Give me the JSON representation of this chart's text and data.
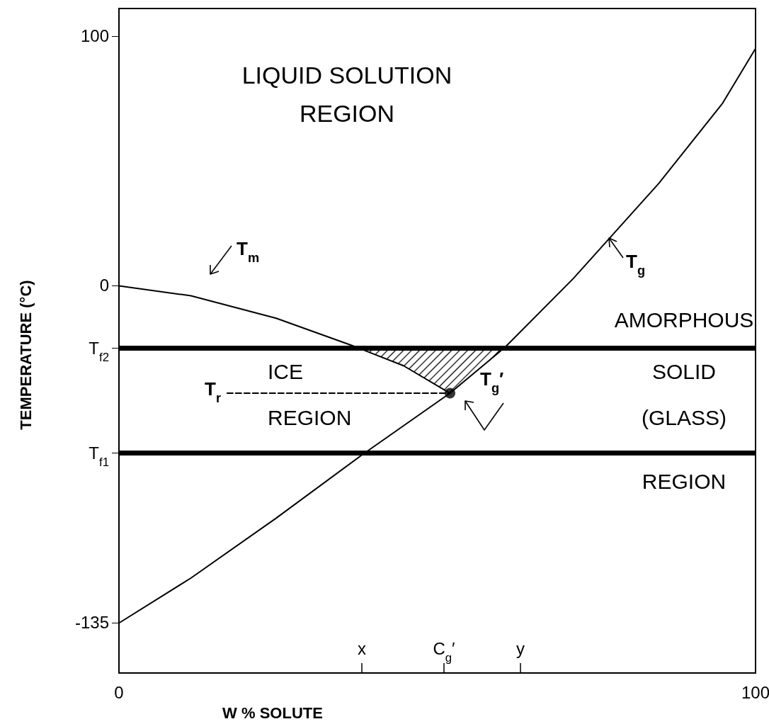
{
  "chart_data": {
    "type": "line",
    "xlabel": "W % SOLUTE",
    "ylabel": "TEMPERATURE (°C)",
    "xlim": [
      0,
      100
    ],
    "ylim": [
      -155,
      111
    ],
    "xticks": [
      0,
      100
    ],
    "yticks": [
      100,
      0,
      {
        "value": -25,
        "label": "T$_{f2}$"
      },
      {
        "value": -67,
        "label": "T$_{f1}$"
      },
      -135
    ],
    "marker": "none",
    "series": [
      {
        "name": "T$_{m}$",
        "type": "line",
        "color": "#000000",
        "x": [
          0,
          11.3,
          24.7,
          36.7,
          44.7,
          52
        ],
        "values": [
          0,
          -4,
          -13,
          -24,
          -32,
          -43
        ]
      },
      {
        "name": "T$_{g}$",
        "type": "line",
        "color": "#000000",
        "x": [
          0,
          11.3,
          24.7,
          38,
          52,
          60.7,
          71.4,
          84.8,
          94.8,
          100
        ],
        "values": [
          -135,
          -117,
          -93,
          -68,
          -43,
          -24.5,
          3,
          41,
          73,
          95
        ]
      },
      {
        "name": "T$_{r}$",
        "type": "line",
        "color": "#000000",
        "line_style": "dashed",
        "x": [
          17,
          52
        ],
        "values": [
          -43,
          -43
        ]
      },
      {
        "name": "T$_{g}$′",
        "type": "scatter",
        "color": "#000000",
        "marker": "circle",
        "x": [
          52
        ],
        "values": [
          -43
        ]
      }
    ],
    "ref_lines": [
      {
        "axis": "y",
        "value": -25,
        "color": "#000000"
      },
      {
        "axis": "y",
        "value": -67,
        "color": "#000000"
      }
    ],
    "annotations": [
      "LIQUID SOLUTION\nREGION",
      "ICE\nREGION",
      "AMORPHOUS\nSOLID\n(GLASS)\nREGION",
      "x",
      "C$_{g}$′",
      "y"
    ]
  }
}
